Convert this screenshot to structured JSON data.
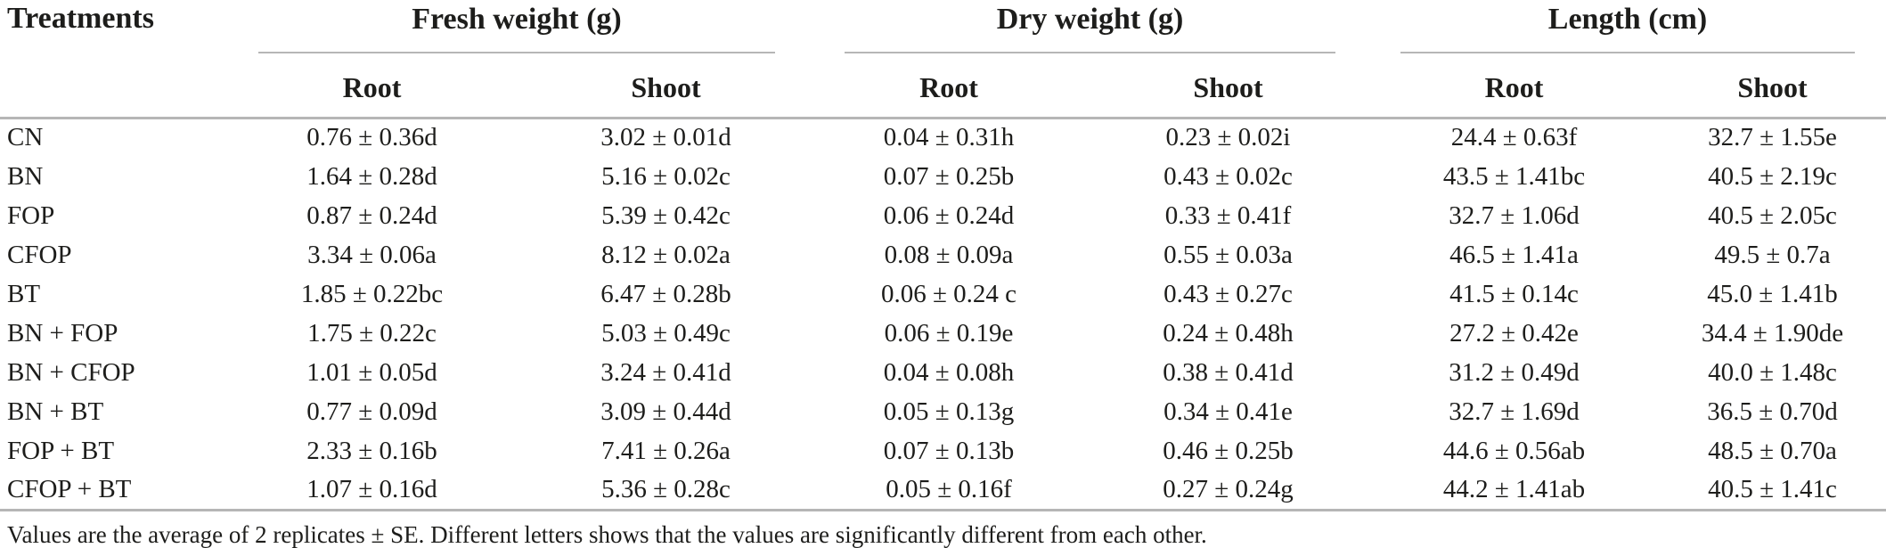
{
  "colors": {
    "text": "#1d1d1b",
    "rule": "#b6b6b6",
    "background": "#ffffff"
  },
  "table": {
    "header": {
      "treatments": "Treatments"
    },
    "groups": [
      {
        "label": "Fresh weight (g)",
        "columns": [
          "Root",
          "Shoot"
        ]
      },
      {
        "label": "Dry weight (g)",
        "columns": [
          "Root",
          "Shoot"
        ]
      },
      {
        "label": "Length (cm)",
        "columns": [
          "Root",
          "Shoot"
        ]
      }
    ],
    "rows": [
      {
        "treatment": "CN",
        "values": [
          "0.76 ± 0.36d",
          "3.02 ± 0.01d",
          "0.04 ± 0.31h",
          "0.23 ± 0.02i",
          "24.4 ± 0.63f",
          "32.7 ± 1.55e"
        ]
      },
      {
        "treatment": "BN",
        "values": [
          "1.64 ± 0.28d",
          "5.16 ± 0.02c",
          "0.07 ± 0.25b",
          "0.43 ± 0.02c",
          "43.5 ± 1.41bc",
          "40.5 ± 2.19c"
        ]
      },
      {
        "treatment": "FOP",
        "values": [
          "0.87 ± 0.24d",
          "5.39 ± 0.42c",
          "0.06 ± 0.24d",
          "0.33 ± 0.41f",
          "32.7 ± 1.06d",
          "40.5 ± 2.05c"
        ]
      },
      {
        "treatment": "CFOP",
        "values": [
          "3.34 ± 0.06a",
          "8.12 ± 0.02a",
          "0.08 ± 0.09a",
          "0.55 ± 0.03a",
          "46.5 ± 1.41a",
          "49.5 ± 0.7a"
        ]
      },
      {
        "treatment": "BT",
        "values": [
          "1.85 ± 0.22bc",
          "6.47 ± 0.28b",
          "0.06 ± 0.24 c",
          "0.43 ± 0.27c",
          "41.5 ± 0.14c",
          "45.0 ± 1.41b"
        ]
      },
      {
        "treatment": "BN + FOP",
        "values": [
          "1.75 ± 0.22c",
          "5.03 ± 0.49c",
          "0.06 ± 0.19e",
          "0.24 ± 0.48h",
          "27.2 ± 0.42e",
          "34.4 ± 1.90de"
        ]
      },
      {
        "treatment": "BN + CFOP",
        "values": [
          "1.01 ± 0.05d",
          "3.24 ± 0.41d",
          "0.04 ± 0.08h",
          "0.38 ± 0.41d",
          "31.2 ± 0.49d",
          "40.0 ± 1.48c"
        ]
      },
      {
        "treatment": "BN + BT",
        "values": [
          "0.77 ± 0.09d",
          "3.09 ± 0.44d",
          "0.05 ± 0.13g",
          "0.34 ± 0.41e",
          "32.7 ± 1.69d",
          "36.5 ± 0.70d"
        ]
      },
      {
        "treatment": "FOP + BT",
        "values": [
          "2.33 ± 0.16b",
          "7.41 ± 0.26a",
          "0.07 ± 0.13b",
          "0.46 ± 0.25b",
          "44.6 ± 0.56ab",
          "48.5 ± 0.70a"
        ]
      },
      {
        "treatment": "CFOP + BT",
        "values": [
          "1.07 ± 0.16d",
          "5.36 ± 0.28c",
          "0.05 ± 0.16f",
          "0.27 ± 0.24g",
          "44.2 ± 1.41ab",
          "40.5 ± 1.41c"
        ]
      }
    ],
    "footnote": "Values are the average of 2 replicates ± SE. Different letters shows that the values are significantly different from each other."
  },
  "chart_data": {
    "type": "table",
    "title": "",
    "categories": [
      "CN",
      "BN",
      "FOP",
      "CFOP",
      "BT",
      "BN + FOP",
      "BN + CFOP",
      "BN + BT",
      "FOP + BT",
      "CFOP + BT"
    ],
    "series": [
      {
        "name": "Fresh weight (g) Root",
        "values": [
          0.76,
          1.64,
          0.87,
          3.34,
          1.85,
          1.75,
          1.01,
          0.77,
          2.33,
          1.07
        ],
        "se": [
          0.36,
          0.28,
          0.24,
          0.06,
          0.22,
          0.22,
          0.05,
          0.09,
          0.16,
          0.16
        ],
        "letters": [
          "d",
          "d",
          "d",
          "a",
          "bc",
          "c",
          "d",
          "d",
          "b",
          "d"
        ]
      },
      {
        "name": "Fresh weight (g) Shoot",
        "values": [
          3.02,
          5.16,
          5.39,
          8.12,
          6.47,
          5.03,
          3.24,
          3.09,
          7.41,
          5.36
        ],
        "se": [
          0.01,
          0.02,
          0.42,
          0.02,
          0.28,
          0.49,
          0.41,
          0.44,
          0.26,
          0.28
        ],
        "letters": [
          "d",
          "c",
          "c",
          "a",
          "b",
          "c",
          "d",
          "d",
          "a",
          "c"
        ]
      },
      {
        "name": "Dry weight (g) Root",
        "values": [
          0.04,
          0.07,
          0.06,
          0.08,
          0.06,
          0.06,
          0.04,
          0.05,
          0.07,
          0.05
        ],
        "se": [
          0.31,
          0.25,
          0.24,
          0.09,
          0.24,
          0.19,
          0.08,
          0.13,
          0.13,
          0.16
        ],
        "letters": [
          "h",
          "b",
          "d",
          "a",
          "c",
          "e",
          "h",
          "g",
          "b",
          "f"
        ]
      },
      {
        "name": "Dry weight (g) Shoot",
        "values": [
          0.23,
          0.43,
          0.33,
          0.55,
          0.43,
          0.24,
          0.38,
          0.34,
          0.46,
          0.27
        ],
        "se": [
          0.02,
          0.02,
          0.41,
          0.03,
          0.27,
          0.48,
          0.41,
          0.41,
          0.25,
          0.24
        ],
        "letters": [
          "i",
          "c",
          "f",
          "a",
          "c",
          "h",
          "d",
          "e",
          "b",
          "g"
        ]
      },
      {
        "name": "Length (cm) Root",
        "values": [
          24.4,
          43.5,
          32.7,
          46.5,
          41.5,
          27.2,
          31.2,
          32.7,
          44.6,
          44.2
        ],
        "se": [
          0.63,
          1.41,
          1.06,
          1.41,
          0.14,
          0.42,
          0.49,
          1.69,
          0.56,
          1.41
        ],
        "letters": [
          "f",
          "bc",
          "d",
          "a",
          "c",
          "e",
          "d",
          "d",
          "ab",
          "ab"
        ]
      },
      {
        "name": "Length (cm) Shoot",
        "values": [
          32.7,
          40.5,
          40.5,
          49.5,
          45.0,
          34.4,
          40.0,
          36.5,
          48.5,
          40.5
        ],
        "se": [
          1.55,
          2.19,
          2.05,
          0.7,
          1.41,
          1.9,
          1.48,
          0.7,
          0.7,
          1.41
        ],
        "letters": [
          "e",
          "c",
          "c",
          "a",
          "b",
          "de",
          "c",
          "d",
          "a",
          "c"
        ]
      }
    ]
  }
}
